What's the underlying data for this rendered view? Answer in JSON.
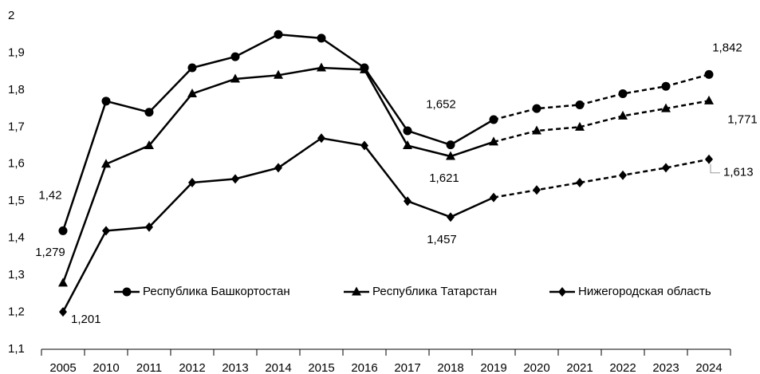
{
  "chart_data": {
    "type": "line",
    "categories": [
      "2005",
      "2010",
      "2011",
      "2012",
      "2013",
      "2014",
      "2015",
      "2016",
      "2017",
      "2018",
      "2019",
      "2020",
      "2021",
      "2022",
      "2023",
      "2024"
    ],
    "forecast_from": "2019",
    "ylim": [
      1.1,
      2
    ],
    "yticks": [
      {
        "value": 1.1,
        "label": "1,1"
      },
      {
        "value": 1.2,
        "label": "1,2"
      },
      {
        "value": 1.3,
        "label": "1,3"
      },
      {
        "value": 1.4,
        "label": "1,4"
      },
      {
        "value": 1.5,
        "label": "1,5"
      },
      {
        "value": 1.6,
        "label": "1,6"
      },
      {
        "value": 1.7,
        "label": "1,7"
      },
      {
        "value": 1.8,
        "label": "1,8"
      },
      {
        "value": 1.9,
        "label": "1,9"
      },
      2
    ],
    "grid": false,
    "series": [
      {
        "name": "Республика Башкортостан",
        "color": "#000000",
        "marker": "circle",
        "values": [
          1.42,
          1.77,
          1.74,
          1.86,
          1.89,
          1.95,
          1.94,
          1.86,
          1.69,
          1.652,
          1.72,
          1.75,
          1.76,
          1.79,
          1.81,
          1.842
        ],
        "value_labels": [
          "1,42",
          null,
          null,
          null,
          null,
          null,
          null,
          null,
          null,
          "1,652",
          null,
          null,
          null,
          null,
          null,
          "1,842"
        ]
      },
      {
        "name": "Республика Татарстан",
        "color": "#000000",
        "marker": "triangle",
        "values": [
          1.279,
          1.6,
          1.65,
          1.79,
          1.83,
          1.84,
          1.86,
          1.855,
          1.65,
          1.621,
          1.66,
          1.69,
          1.7,
          1.73,
          1.75,
          1.771
        ],
        "value_labels": [
          "1,279",
          null,
          null,
          null,
          null,
          null,
          null,
          null,
          null,
          "1,621",
          null,
          null,
          null,
          null,
          null,
          "1,771"
        ]
      },
      {
        "name": "Нижегородская область",
        "color": "#000000",
        "marker": "diamond",
        "values": [
          1.201,
          1.42,
          1.43,
          1.55,
          1.56,
          1.59,
          1.67,
          1.65,
          1.5,
          1.457,
          1.51,
          1.53,
          1.55,
          1.57,
          1.59,
          1.613
        ],
        "value_labels": [
          "1,201",
          null,
          null,
          null,
          null,
          null,
          null,
          null,
          null,
          "1,457",
          null,
          null,
          null,
          null,
          null,
          "1,613"
        ]
      }
    ],
    "legend": "inside-bottom"
  }
}
